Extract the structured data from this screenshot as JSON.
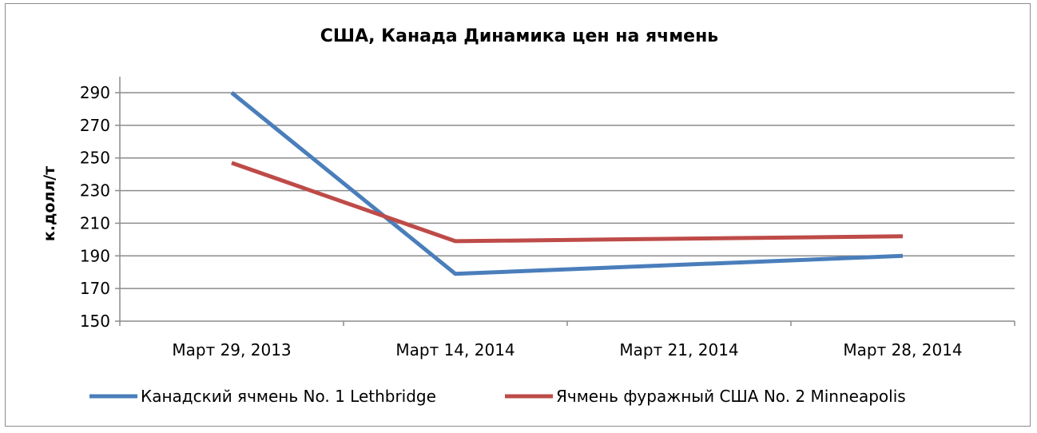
{
  "chart_data": {
    "type": "line",
    "title": "США, Канада Динамика цен на ячмень",
    "ylabel": "к.долл/т",
    "xlabel": "",
    "categories": [
      "Март 29, 2013",
      "Март 14, 2014",
      "Март 21, 2014",
      "Март 28, 2014"
    ],
    "ylim": [
      150,
      290
    ],
    "yticks": [
      150,
      170,
      190,
      210,
      230,
      250,
      270,
      290
    ],
    "grid": true,
    "legend": "bottom",
    "series": [
      {
        "name": "Канадский ячмень No. 1 Lethbridge",
        "color": "#4a7ebb",
        "values": [
          290,
          179,
          null,
          190
        ]
      },
      {
        "name": "Ячмень фуражный США  No. 2 Minneapolis",
        "color": "#be4b48",
        "values": [
          247,
          199,
          null,
          202
        ]
      }
    ]
  }
}
